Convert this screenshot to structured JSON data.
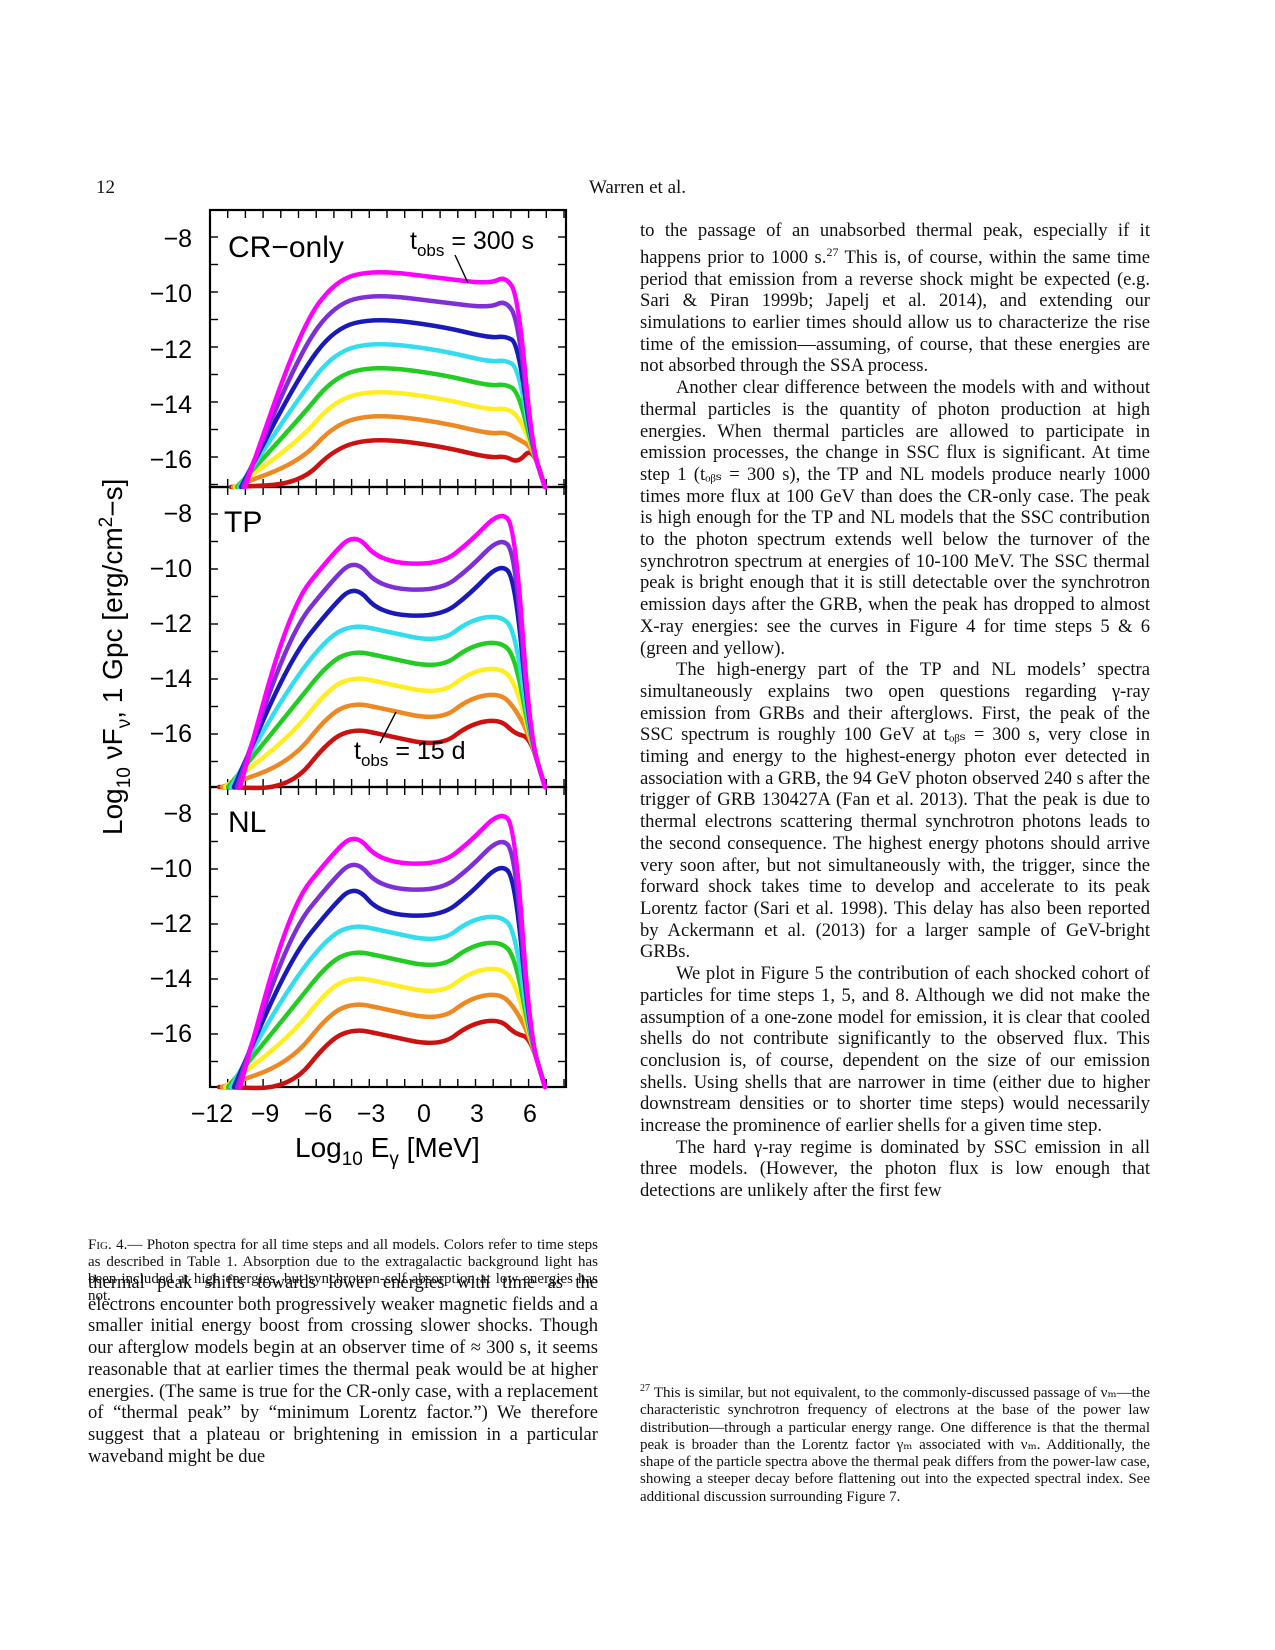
{
  "header": {
    "page_number": "12",
    "running_head": "Warren et al."
  },
  "figure": {
    "panels": [
      {
        "label": "CR−only",
        "annotation": "t",
        "annotation_sub": "obs",
        "annotation_rest": " = 300 s"
      },
      {
        "label": "TP",
        "annotation": "t",
        "annotation_sub": "obs",
        "annotation_rest": " = 15 d"
      },
      {
        "label": "NL"
      }
    ],
    "y_tick_labels": [
      "−8",
      "−10",
      "−12",
      "−14",
      "−16"
    ],
    "x_tick_labels": [
      "−12",
      "−9",
      "−6",
      "−3",
      "0",
      "3",
      "6"
    ],
    "y_title": "Log10 νFν, 1 Gpc [erg/cm2−s]",
    "y_title_parts": {
      "a": "Log",
      "b": "10",
      "c": " νF",
      "d": "ν",
      "e": ",  1 Gpc  [erg/cm",
      "f": "2",
      "g": "−s]"
    },
    "x_title_parts": {
      "a": "Log",
      "b": "10",
      "c": " E",
      "d": "γ",
      "e": "  [MeV]"
    },
    "colors": [
      "#ff00ff",
      "#7f2fd6",
      "#1a1ab8",
      "#33ddee",
      "#22cc22",
      "#ffee22",
      "#ee8822",
      "#cc1111"
    ]
  },
  "caption": {
    "label": "Fig. 4.",
    "text": "— Photon spectra for all time steps and all models. Colors refer to time steps as described in Table 1. Absorption due to the extragalactic background light has been included at high energies, but synchrotron-self absorption at low energies has not."
  },
  "left_column": {
    "p1": "thermal peak shifts towards lower energies with time as the electrons encounter both progressively weaker magnetic fields and a smaller initial energy boost from crossing slower shocks. Though our afterglow models begin at an observer time of ≈ 300 s, it seems reasonable that at earlier times the thermal peak would be at higher energies. (The same is true for the CR-only case, with a replacement of “thermal peak” by “minimum Lorentz factor.”) We therefore suggest that a plateau or brightening in emission in a particular waveband might be due"
  },
  "right_column": {
    "p1a": "to the passage of an unabsorbed thermal peak, especially if it happens prior to 1000 s.",
    "p1_fn": "27",
    "p1b": " This is, of course, within the same time period that emission from a reverse shock might be expected (e.g. Sari & Piran 1999b; Japelj et al. 2014), and extending our simulations to earlier times should allow us to characterize the rise time of the emission—assuming, of course, that these energies are not absorbed through the SSA process.",
    "p2": "Another clear difference between the models with and without thermal particles is the quantity of photon production at high energies. When thermal particles are allowed to participate in emission processes, the change in SSC flux is significant. At time step 1 (tₒᵦₛ = 300 s), the TP and NL models produce nearly 1000 times more flux at 100 GeV than does the CR-only case. The peak is high enough for the TP and NL models that the SSC contribution to the photon spectrum extends well below the turnover of the synchrotron spectrum at energies of 10-100 MeV. The SSC thermal peak is bright enough that it is still detectable over the synchrotron emission days after the GRB, when the peak has dropped to almost X-ray energies: see the curves in Figure 4 for time steps 5 & 6 (green and yellow).",
    "p3": "The high-energy part of the TP and NL models’ spectra simultaneously explains two open questions regarding γ-ray emission from GRBs and their afterglows. First, the peak of the SSC spectrum is roughly 100 GeV at tₒᵦₛ = 300 s, very close in timing and energy to the highest-energy photon ever detected in association with a GRB, the 94 GeV photon observed 240 s after the trigger of GRB 130427A (Fan et al. 2013). That the peak is due to thermal electrons scattering thermal synchrotron photons leads to the second consequence. The highest energy photons should arrive very soon after, but not simultaneously with, the trigger, since the forward shock takes time to develop and accelerate to its peak Lorentz factor (Sari et al. 1998). This delay has also been reported by Ackermann et al. (2013) for a larger sample of GeV-bright GRBs.",
    "p4": "We plot in Figure 5 the contribution of each shocked cohort of particles for time steps 1, 5, and 8. Although we did not make the assumption of a one-zone model for emission, it is clear that cooled shells do not contribute significantly to the observed flux. This conclusion is, of course, dependent on the size of our emission shells. Using shells that are narrower in time (either due to higher downstream densities or to shorter time steps) would necessarily increase the prominence of earlier shells for a given time step.",
    "p5": "The hard γ-ray regime is dominated by SSC emission in all three models. (However, the photon flux is low enough that detections are unlikely after the first few"
  },
  "footnote": {
    "mark": "27",
    "text": " This is similar, but not equivalent, to the commonly-discussed passage of νₘ—the characteristic synchrotron frequency of electrons at the base of the power law distribution—through a particular energy range. One difference is that the thermal peak is broader than the Lorentz factor γₘ associated with νₘ. Additionally, the shape of the particle spectra above the thermal peak differs from the power-law case, showing a steeper decay before flattening out into the expected spectral index. See additional discussion surrounding Figure 7."
  }
}
